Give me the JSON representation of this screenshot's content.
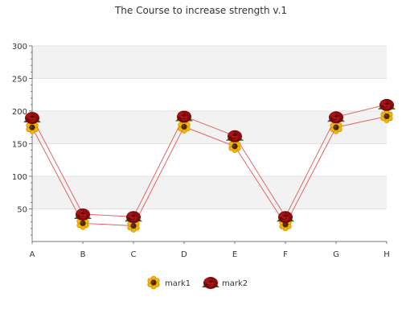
{
  "chart_data": {
    "type": "line",
    "title": "The Course to increase strength v.1",
    "xlabel": "",
    "ylabel": "",
    "categories": [
      "A",
      "B",
      "C",
      "D",
      "E",
      "F",
      "G",
      "H"
    ],
    "ylim": [
      0,
      300
    ],
    "yticks": [
      50,
      100,
      150,
      200,
      250,
      300
    ],
    "grid": true,
    "legend_position": "bottom-center",
    "series": [
      {
        "name": "mark1",
        "values": [
          175,
          28,
          24,
          176,
          146,
          26,
          175,
          192
        ],
        "color": "#e06666",
        "marker": "sunflower-icon"
      },
      {
        "name": "mark2",
        "values": [
          190,
          42,
          38,
          192,
          162,
          38,
          191,
          210
        ],
        "color": "#e06666",
        "marker": "rose-icon"
      }
    ],
    "colors": {
      "band": "#f2f2f2",
      "axis": "#777777",
      "text": "#333333"
    }
  }
}
